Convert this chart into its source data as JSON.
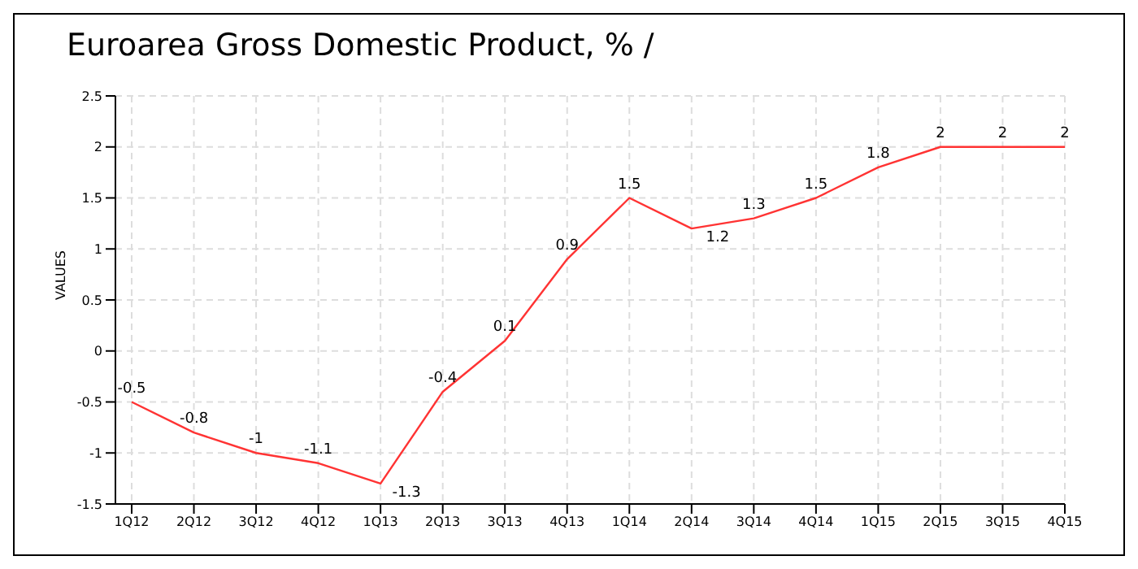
{
  "chart_data": {
    "type": "line",
    "title": "Euroarea Gross Domestic Product, % /",
    "ylabel": "VALUES",
    "categories": [
      "1Q12",
      "2Q12",
      "3Q12",
      "4Q12",
      "1Q13",
      "2Q13",
      "3Q13",
      "4Q13",
      "1Q14",
      "2Q14",
      "3Q14",
      "4Q14",
      "1Q15",
      "2Q15",
      "3Q15",
      "4Q15"
    ],
    "series": [
      {
        "color": "#ff3333",
        "values": [
          -0.5,
          -0.8,
          -1,
          -1.1,
          -1.3,
          -0.4,
          0.1,
          0.9,
          1.5,
          1.2,
          1.3,
          1.5,
          1.8,
          2,
          2,
          2
        ]
      }
    ],
    "ylim": [
      -1.5,
      2.5
    ],
    "yticks": [
      -1.5,
      -1,
      -0.5,
      0,
      0.5,
      1,
      1.5,
      2,
      2.5
    ],
    "grid": true,
    "data_labels": true,
    "marker": "none",
    "line_style": "solid"
  }
}
